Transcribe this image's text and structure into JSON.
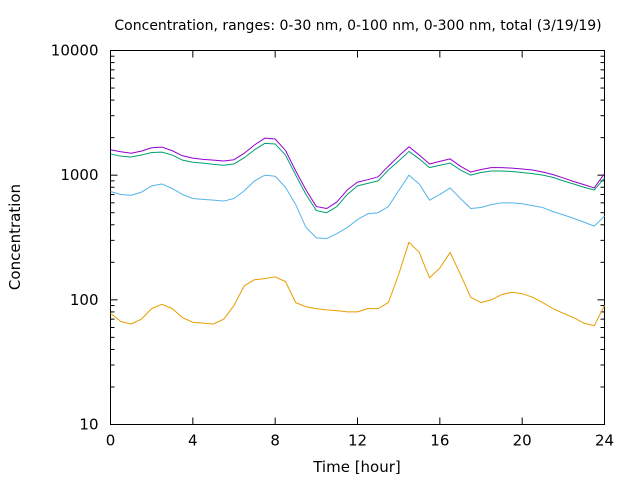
{
  "chart_data": {
    "type": "line",
    "title": "Concentration, ranges: 0-30 nm, 0-100 nm, 0-300 nm, total (3/19/19)",
    "xlabel": "Time [hour]",
    "ylabel": "Concentration",
    "xlim": [
      0,
      24
    ],
    "ylim": [
      10,
      10000
    ],
    "yscale": "log",
    "grid": false,
    "x_ticks": [
      0,
      4,
      8,
      12,
      16,
      20,
      24
    ],
    "x_tick_labels": [
      "0",
      "4",
      "8",
      "12",
      "16",
      "20",
      "24"
    ],
    "y_ticks": [
      10,
      100,
      1000,
      10000
    ],
    "y_tick_labels": [
      "10",
      "100",
      "1000",
      "10000"
    ],
    "x": [
      0,
      0.5,
      1,
      1.5,
      2,
      2.5,
      3,
      3.5,
      4,
      4.5,
      5,
      5.5,
      6,
      6.5,
      7,
      7.5,
      8,
      8.5,
      9,
      9.5,
      10,
      10.5,
      11,
      11.5,
      12,
      12.5,
      13,
      13.5,
      14,
      14.5,
      15,
      15.5,
      16,
      16.5,
      17,
      17.5,
      18,
      18.5,
      19,
      19.5,
      20,
      20.5,
      21,
      21.5,
      22,
      22.5,
      23,
      23.5,
      24
    ],
    "series": [
      {
        "color": "#e69f00",
        "values": [
          78,
          67,
          64,
          70,
          85,
          92,
          85,
          72,
          66,
          65,
          64,
          70,
          90,
          130,
          145,
          148,
          153,
          140,
          95,
          88,
          85,
          83,
          82,
          80,
          80,
          85,
          85,
          95,
          160,
          290,
          240,
          150,
          180,
          240,
          160,
          105,
          95,
          100,
          110,
          115,
          112,
          105,
          95,
          85,
          78,
          72,
          65,
          62,
          90
        ]
      },
      {
        "color": "#56b4e9",
        "values": [
          740,
          700,
          690,
          730,
          820,
          850,
          780,
          700,
          650,
          640,
          630,
          620,
          650,
          750,
          900,
          1000,
          980,
          800,
          580,
          380,
          315,
          310,
          340,
          380,
          440,
          490,
          500,
          560,
          750,
          1000,
          850,
          630,
          700,
          790,
          650,
          540,
          550,
          580,
          600,
          600,
          590,
          570,
          550,
          510,
          480,
          450,
          420,
          390,
          470
        ]
      },
      {
        "color": "#009e73",
        "values": [
          1480,
          1420,
          1400,
          1450,
          1520,
          1530,
          1450,
          1320,
          1270,
          1250,
          1220,
          1200,
          1230,
          1380,
          1600,
          1800,
          1780,
          1450,
          1000,
          700,
          520,
          500,
          560,
          700,
          820,
          860,
          900,
          1100,
          1300,
          1550,
          1350,
          1150,
          1200,
          1250,
          1100,
          1000,
          1050,
          1080,
          1080,
          1070,
          1050,
          1030,
          1000,
          960,
          900,
          850,
          800,
          760,
          950
        ]
      },
      {
        "color": "#9400d3",
        "values": [
          1600,
          1540,
          1500,
          1560,
          1660,
          1680,
          1570,
          1430,
          1370,
          1340,
          1320,
          1300,
          1330,
          1500,
          1750,
          1980,
          1950,
          1580,
          1080,
          760,
          560,
          540,
          610,
          760,
          880,
          920,
          970,
          1180,
          1420,
          1690,
          1450,
          1230,
          1290,
          1350,
          1180,
          1060,
          1110,
          1150,
          1150,
          1140,
          1120,
          1100,
          1060,
          1010,
          950,
          890,
          840,
          790,
          1030
        ]
      }
    ]
  }
}
